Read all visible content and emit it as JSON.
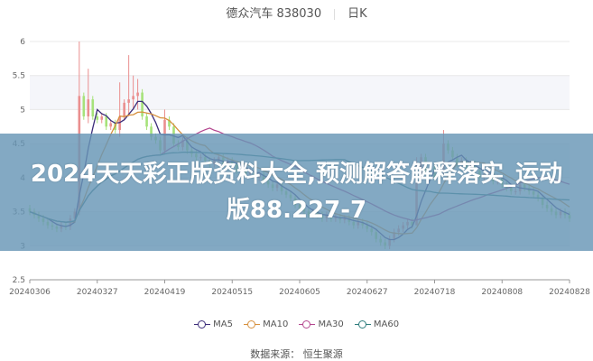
{
  "title": {
    "stock": "德众汽车 838030",
    "period": "日K"
  },
  "banner": {
    "text": "2024天天彩正版资料大全,预测解答解释落实_运动版88.227-7"
  },
  "source": "数据来源： 恒生聚源",
  "colors": {
    "up": "#ea8f8f",
    "down": "#a6e27a",
    "MA5": "#3c2d7a",
    "MA10": "#d6903d",
    "MA30": "#b4478f",
    "MA60": "#2e7d7d",
    "grid": "#e8e8e8",
    "band": "#f5f6fa"
  },
  "chart_data": {
    "type": "candlestick",
    "ylim": [
      2.5,
      6
    ],
    "yticks": [
      "2.5",
      "3",
      "3.5",
      "4",
      "4.5",
      "5",
      "5.5",
      "6"
    ],
    "xticks": [
      "20240306",
      "20240327",
      "20240419",
      "20240515",
      "20240605",
      "20240627",
      "20240718",
      "20240808",
      "20240828"
    ],
    "legend": [
      "MA5",
      "MA10",
      "MA30",
      "MA60"
    ],
    "open": [
      3.55,
      3.5,
      3.45,
      3.4,
      3.35,
      3.3,
      3.28,
      3.25,
      3.3,
      3.28,
      3.4,
      3.5,
      5.2,
      4.9,
      5.15,
      4.9,
      4.85,
      4.9,
      4.75,
      4.8,
      4.7,
      4.9,
      5.1,
      5.15,
      5.2,
      5.25,
      4.9,
      4.75,
      4.6,
      4.55,
      4.4,
      4.85,
      4.75,
      4.5,
      4.45,
      4.55,
      4.4,
      4.35,
      4.3,
      4.3,
      4.25,
      4.2,
      4.25,
      4.3,
      4.2,
      4.25,
      4.2,
      4.1,
      4.15,
      4.05,
      4.1,
      4.0,
      4.05,
      3.95,
      3.9,
      3.85,
      3.9,
      3.8,
      3.75,
      3.7,
      3.6,
      3.55,
      3.5,
      3.45,
      3.5,
      3.45,
      3.4,
      3.45,
      3.4,
      3.42,
      3.38,
      3.4,
      3.35,
      3.3,
      3.35,
      3.3,
      3.25,
      3.2,
      3.1,
      3.05,
      3.0,
      3.1,
      3.2,
      3.25,
      3.3,
      3.35,
      3.3,
      4.0,
      4.3,
      4.1,
      4.15,
      4.0,
      4.1,
      4.5,
      4.4,
      4.3,
      4.2,
      4.25,
      4.15,
      4.2,
      4.1,
      4.0,
      4.05,
      4.1,
      3.95,
      4.0,
      3.9,
      3.85,
      3.8,
      3.8,
      3.9,
      3.85,
      3.8,
      3.75,
      3.7,
      3.6,
      3.55,
      3.5,
      3.45,
      3.5,
      3.45
    ],
    "close": [
      3.5,
      3.45,
      3.4,
      3.35,
      3.3,
      3.28,
      3.25,
      3.3,
      3.28,
      3.4,
      3.5,
      5.2,
      4.9,
      5.15,
      4.9,
      4.85,
      4.9,
      4.75,
      4.8,
      4.7,
      4.9,
      5.1,
      5.15,
      5.2,
      5.25,
      4.9,
      4.75,
      4.6,
      4.55,
      4.4,
      4.85,
      4.75,
      4.5,
      4.45,
      4.55,
      4.4,
      4.35,
      4.3,
      4.3,
      4.25,
      4.2,
      4.25,
      4.3,
      4.2,
      4.25,
      4.2,
      4.1,
      4.15,
      4.05,
      4.1,
      4.0,
      4.05,
      3.95,
      3.9,
      3.85,
      3.9,
      3.8,
      3.75,
      3.7,
      3.6,
      3.55,
      3.5,
      3.45,
      3.5,
      3.45,
      3.4,
      3.45,
      3.4,
      3.42,
      3.38,
      3.4,
      3.35,
      3.3,
      3.35,
      3.3,
      3.25,
      3.2,
      3.1,
      3.05,
      3.0,
      3.1,
      3.2,
      3.25,
      3.3,
      3.35,
      3.3,
      4.0,
      4.3,
      4.1,
      4.15,
      4.0,
      4.1,
      4.5,
      4.4,
      4.3,
      4.2,
      4.25,
      4.15,
      4.2,
      4.1,
      4.0,
      4.05,
      4.1,
      3.95,
      4.0,
      3.9,
      3.85,
      3.8,
      3.8,
      3.9,
      3.85,
      3.8,
      3.75,
      3.7,
      3.6,
      3.55,
      3.5,
      3.45,
      3.5,
      3.45,
      3.4
    ],
    "wicks": [
      {
        "i": 11,
        "high": 6.0,
        "low": 3.45
      },
      {
        "i": 13,
        "high": 5.6,
        "low": 4.8
      },
      {
        "i": 20,
        "high": 5.4,
        "low": 4.6
      },
      {
        "i": 22,
        "high": 5.8,
        "low": 4.9
      },
      {
        "i": 23,
        "high": 5.5,
        "low": 5.0
      },
      {
        "i": 24,
        "high": 5.45,
        "low": 5.0
      },
      {
        "i": 30,
        "high": 5.0,
        "low": 4.35
      },
      {
        "i": 79,
        "high": 3.1,
        "low": 2.95
      },
      {
        "i": 86,
        "high": 4.3,
        "low": 3.3
      },
      {
        "i": 92,
        "high": 4.7,
        "low": 4.05
      }
    ]
  }
}
